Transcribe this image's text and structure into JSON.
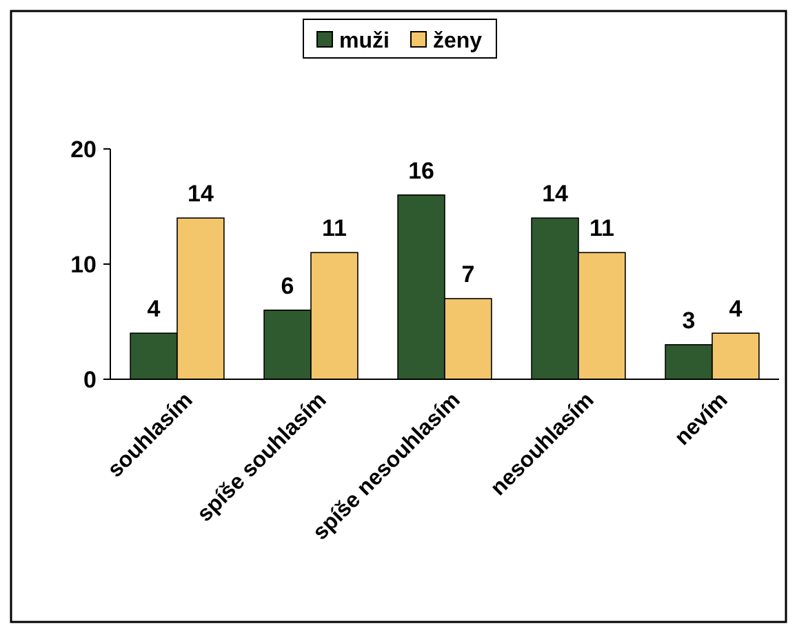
{
  "chart_data": {
    "type": "bar",
    "categories": [
      "souhlasím",
      "spíše souhlasím",
      "spíše nesouhlasím",
      "nesouhlasím",
      "nevím"
    ],
    "series": [
      {
        "name": "muži",
        "color": "#2f5a2f",
        "values": [
          4,
          6,
          16,
          14,
          3
        ]
      },
      {
        "name": "ženy",
        "color": "#f3c66b",
        "values": [
          14,
          11,
          7,
          11,
          4
        ]
      }
    ],
    "ylim": [
      0,
      20
    ],
    "yticks": [
      0,
      10,
      20
    ],
    "data_labels": true,
    "legend": "top",
    "grid": false
  }
}
